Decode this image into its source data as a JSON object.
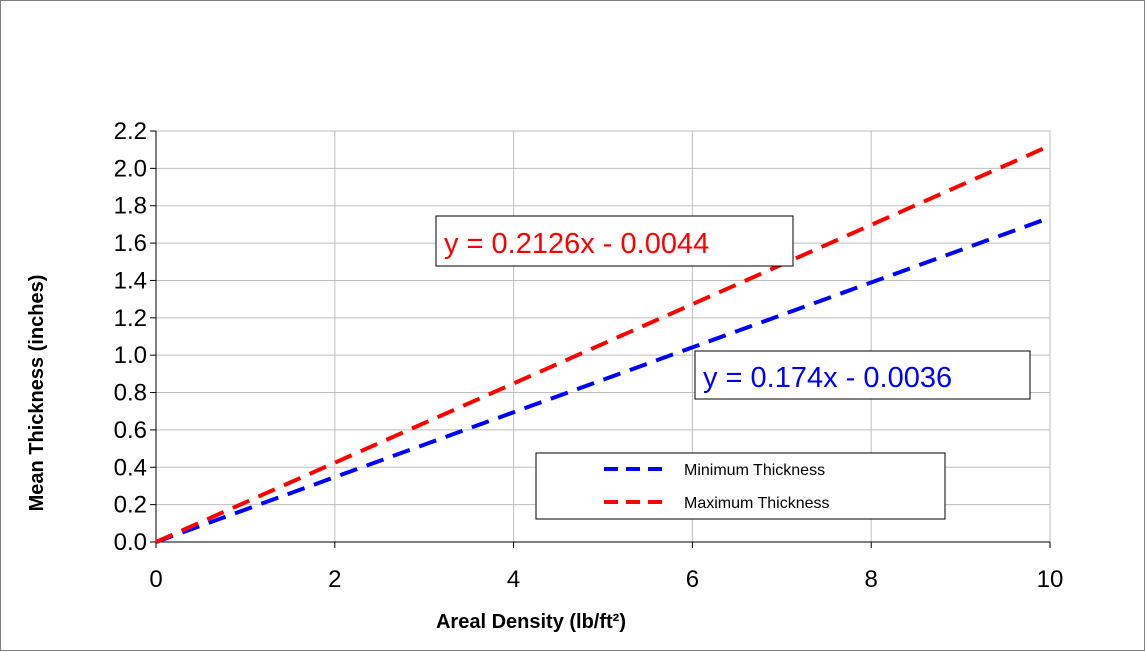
{
  "chart_data": {
    "type": "line",
    "xlabel": "Areal Density (lb/ft²)",
    "ylabel": "Mean Thickness (inches)",
    "xlim": [
      0,
      10
    ],
    "ylim": [
      0,
      2.2
    ],
    "x_ticks": [
      "0",
      "2",
      "4",
      "6",
      "8",
      "10"
    ],
    "y_ticks": [
      "0.0",
      "0.2",
      "0.4",
      "0.6",
      "0.8",
      "1.0",
      "1.2",
      "1.4",
      "1.6",
      "1.8",
      "2.0",
      "2.2"
    ],
    "grid": true,
    "legend_position": "bottom-right",
    "series": [
      {
        "name": "Minimum Thickness",
        "color": "#0000ff",
        "line_style": "dashed",
        "x": [
          0,
          10
        ],
        "y": [
          -0.0036,
          1.7364
        ],
        "equation": "y = 0.174x - 0.0036"
      },
      {
        "name": "Maximum Thickness",
        "color": "#ff0000",
        "line_style": "dashed",
        "x": [
          0,
          10
        ],
        "y": [
          -0.0044,
          2.1216
        ],
        "equation": "y = 0.2126x - 0.0044"
      }
    ]
  }
}
